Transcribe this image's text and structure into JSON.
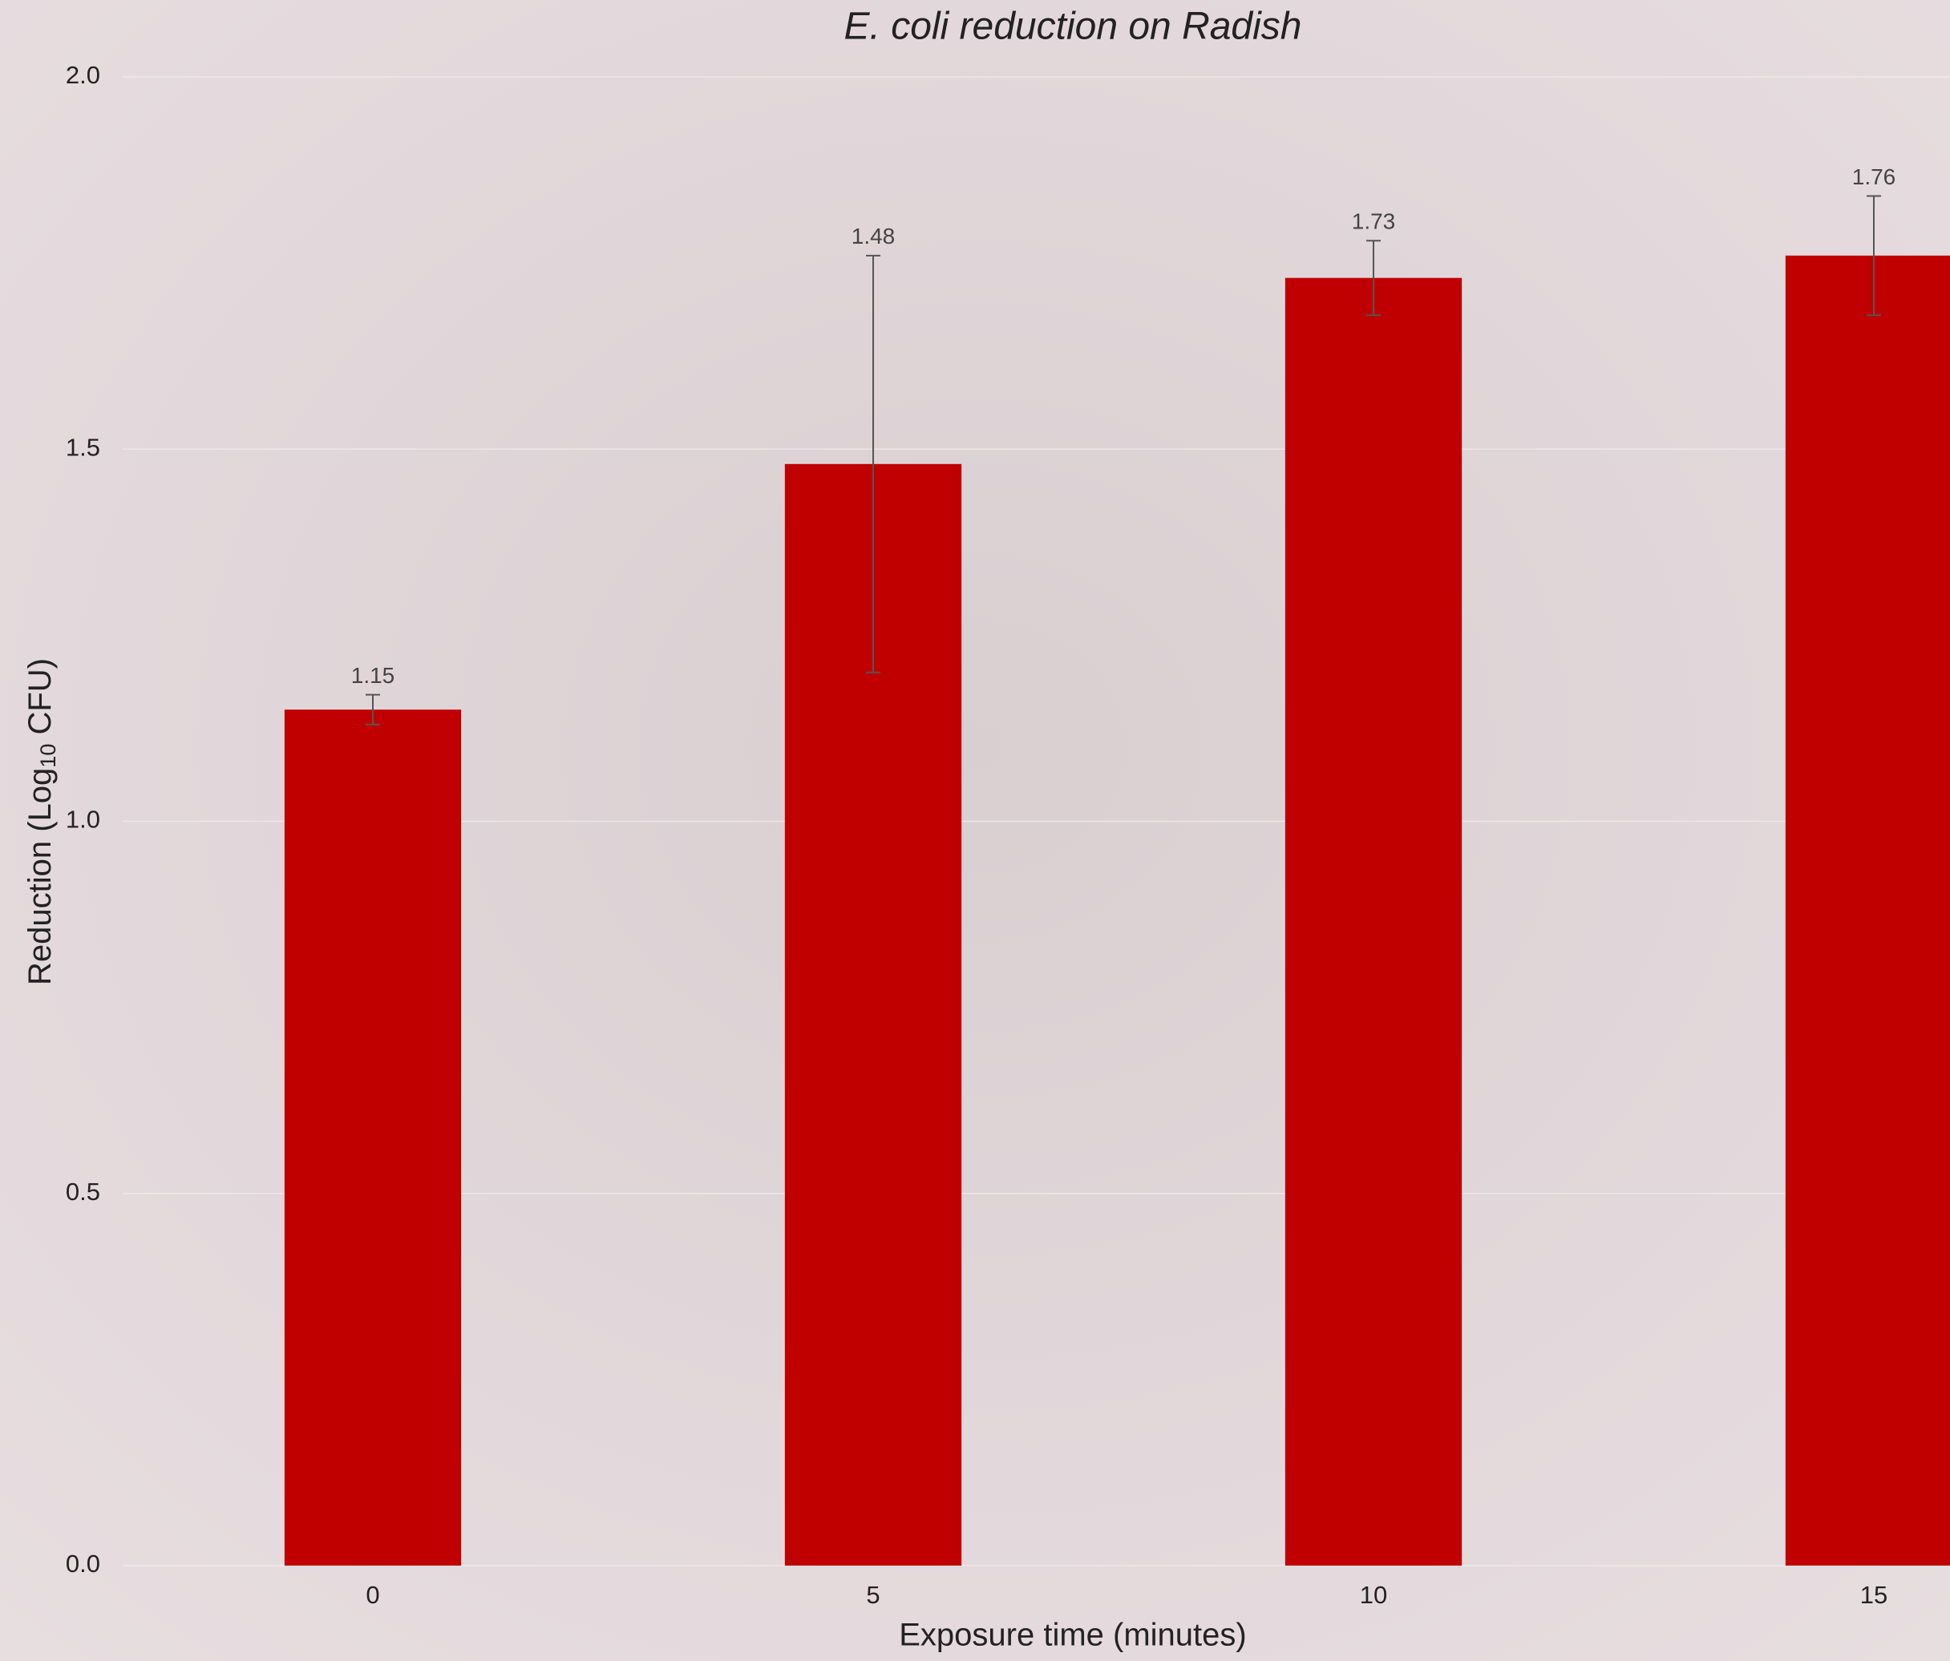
{
  "chart_data": {
    "type": "bar",
    "title": "E. coli reduction on Radish",
    "x_label": "Exposure time (minutes)",
    "y_label": {
      "prefix": "Reduction (Log",
      "subscript": "10",
      "suffix": " CFU)"
    },
    "categories": [
      "0",
      "5",
      "10",
      "15"
    ],
    "values": [
      1.15,
      1.48,
      1.73,
      1.76
    ],
    "errors": [
      0.02,
      0.28,
      0.05,
      0.08
    ],
    "color": "#c00000",
    "ylim": [
      0,
      2
    ],
    "yticks": [
      {
        "value": 0,
        "label": "0.0"
      },
      0.5,
      {
        "value": 1,
        "label": "1.0"
      },
      1.5,
      {
        "value": 2,
        "label": "2.0"
      }
    ],
    "grid": true
  }
}
